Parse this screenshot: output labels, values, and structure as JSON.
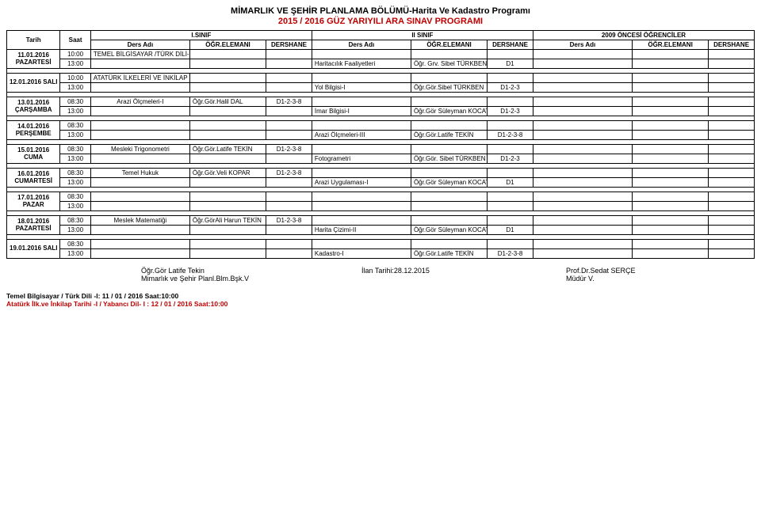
{
  "header": {
    "title1": "MİMARLIK VE ŞEHİR PLANLAMA BÖLÜMÜ-Harita Ve Kadastro Programı",
    "title2": "2015 / 2016 GÜZ YARIYILI ARA SINAV PROGRAMI"
  },
  "columns": {
    "tarih": "Tarih",
    "saat": "Saat",
    "group1": "I.SINIF",
    "group2": "II SINIF",
    "group3": "2009 ÖNCESİ ÖĞRENCİLER",
    "ders": "Ders Adı",
    "ogr": "ÖĞR.ELEMANI",
    "dershane": "DERSHANE"
  },
  "days": [
    {
      "label": "11.01.2016\nPAZARTESİ",
      "rows": [
        {
          "time": "10:00",
          "c1": "TEMEL BİLGİSAYAR /TÜRK DİLİ-I",
          "o1": "",
          "d1": "",
          "c2": "",
          "o2": "",
          "d2": "",
          "c3": "",
          "o3": "",
          "d3": ""
        },
        {
          "time": "13:00",
          "c1": "",
          "o1": "",
          "d1": "",
          "c2": "Haritacılık Faaliyetleri",
          "o2": "Öğr. Grv. Sibel TÜRKBEN",
          "d2": "D1",
          "c3": "",
          "o3": "",
          "d3": ""
        }
      ]
    },
    {
      "label": "12.01.2016 SALI",
      "rows": [
        {
          "time": "10:00",
          "c1": "ATATÜRK İLKELERİ VE İNKİLAP TARİHİ-I/YABANCI DİLİ-I",
          "o1": "",
          "d1": "",
          "c2": "",
          "o2": "",
          "d2": "",
          "c3": "",
          "o3": "",
          "d3": ""
        },
        {
          "time": "13:00",
          "c1": "",
          "o1": "",
          "d1": "",
          "c2": "Yol Bilgisi-I",
          "o2": "Öğr.Gör.Sibel TÜRKBEN",
          "d2": "D1-2-3",
          "c3": "",
          "o3": "",
          "d3": ""
        }
      ]
    },
    {
      "label": "13.01.2016\nÇARŞAMBA",
      "rows": [
        {
          "time": "08:30",
          "c1": "Arazi Ölçmeleri-I",
          "o1": "Öğr.Gör.Halil DAL",
          "d1": "D1-2-3-8",
          "c2": "",
          "o2": "",
          "d2": "",
          "c3": "",
          "o3": "",
          "d3": ""
        },
        {
          "time": "13:00",
          "c1": "",
          "o1": "",
          "d1": "",
          "c2": "İmar Bilgisi-I",
          "o2": "Öğr.Gör Süleyman KOCATÜRKMEN",
          "d2": "D1-2-3",
          "c3": "",
          "o3": "",
          "d3": ""
        }
      ]
    },
    {
      "label": "14.01.2016\nPERŞEMBE",
      "rows": [
        {
          "time": "08:30",
          "c1": "",
          "o1": "",
          "d1": "",
          "c2": "",
          "o2": "",
          "d2": "",
          "c3": "",
          "o3": "",
          "d3": ""
        },
        {
          "time": "13:00",
          "c1": "",
          "o1": "",
          "d1": "",
          "c2": "Arazi Ölçmeleri-III",
          "o2": "Öğr.Gör.Latife TEKİN",
          "d2": "D1-2-3-8",
          "c3": "",
          "o3": "",
          "d3": ""
        }
      ]
    },
    {
      "label": "15.01.2016\nCUMA",
      "rows": [
        {
          "time": "08:30",
          "c1": "Mesleki Trigonometri",
          "o1": "Öğr.Gör.Latife TEKİN",
          "d1": "D1-2-3-8",
          "c2": "",
          "o2": "",
          "d2": "",
          "c3": "",
          "o3": "",
          "d3": ""
        },
        {
          "time": "13:00",
          "c1": "",
          "o1": "",
          "d1": "",
          "c2": "Fotogrametri",
          "o2": "Öğr.Gör. Sibel TÜRKBEN",
          "d2": "D1-2-3",
          "c3": "",
          "o3": "",
          "d3": ""
        }
      ]
    },
    {
      "label": "16.01.2016\nCUMARTESİ",
      "rows": [
        {
          "time": "08:30",
          "c1": "Temel Hukuk",
          "o1": "Öğr.Gör.Veli KOPAR",
          "d1": "D1-2-3-8",
          "c2": "",
          "o2": "",
          "d2": "",
          "c3": "",
          "o3": "",
          "d3": ""
        },
        {
          "time": "13:00",
          "c1": "",
          "o1": "",
          "d1": "",
          "c2": "Arazi Uygulaması-I",
          "o2": "Öğr.Gör Süleyman KOCATÜRKMEN",
          "d2": "D1",
          "c3": "",
          "o3": "",
          "d3": ""
        }
      ]
    },
    {
      "label": "17.01.2016\nPAZAR",
      "rows": [
        {
          "time": "08:30",
          "c1": "",
          "o1": "",
          "d1": "",
          "c2": "",
          "o2": "",
          "d2": "",
          "c3": "",
          "o3": "",
          "d3": ""
        },
        {
          "time": "13:00",
          "c1": "",
          "o1": "",
          "d1": "",
          "c2": "",
          "o2": "",
          "d2": "",
          "c3": "",
          "o3": "",
          "d3": ""
        }
      ]
    },
    {
      "label": "18.01.2016\nPAZARTESİ",
      "rows": [
        {
          "time": "08:30",
          "c1": "Meslek Matematiği",
          "o1": "Öğr.GörAli Harun TEKİN",
          "d1": "D1-2-3-8",
          "c2": "",
          "o2": "",
          "d2": "",
          "c3": "",
          "o3": "",
          "d3": ""
        },
        {
          "time": "13:00",
          "c1": "",
          "o1": "",
          "d1": "",
          "c2": "Harita Çizimi-II",
          "o2": "Öğr.Gör Süleyman KOCATÜRKMEN",
          "d2": "D1",
          "c3": "",
          "o3": "",
          "d3": ""
        }
      ]
    },
    {
      "label": "19.01.2016 SALI",
      "rows": [
        {
          "time": "08:30",
          "c1": "",
          "o1": "",
          "d1": "",
          "c2": "",
          "o2": "",
          "d2": "",
          "c3": "",
          "o3": "",
          "d3": ""
        },
        {
          "time": "13:00",
          "c1": "",
          "o1": "",
          "d1": "",
          "c2": "Kadastro-I",
          "o2": "Öğr.Gör.Latife TEKİN",
          "d2": "D1-2-3-8",
          "c3": "",
          "o3": "",
          "d3": ""
        }
      ]
    }
  ],
  "footer": {
    "leftA": "Öğr.Gör Latife Tekin",
    "leftB": "Mimarlık ve Şehir Planl.Blm.Bşk.V",
    "mid": "İlan Tarihi:28.12.2015",
    "rightA": "Prof.Dr.Sedat SERÇE",
    "rightB": "Müdür V."
  },
  "notes": {
    "line1": "Temel Bilgisayar / Türk Dili -I: 11 / 01 / 2016 Saat:10:00",
    "line2": "Atatürk İlk.ve İnkilap Tarihi -I / Yabancı Dil- I : 12 / 01 / 2016 Saat:10:00"
  },
  "layout": {
    "col_widths_pct": [
      7,
      4,
      13,
      10,
      6,
      13,
      10,
      6,
      13,
      10,
      6
    ]
  }
}
